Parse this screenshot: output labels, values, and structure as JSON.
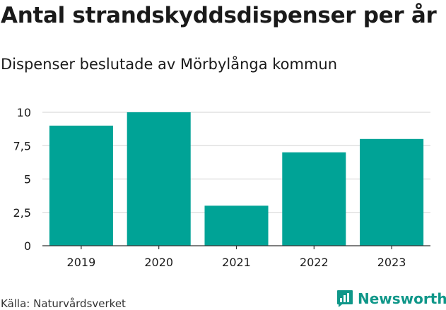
{
  "title": "Antal strandskyddsdispenser per år",
  "subtitle": "Dispenser beslutade av Mörbylånga kommun",
  "source": "Källa: Naturvårdsverket",
  "brand": {
    "name": "Newsworthy",
    "icon": "bar-chart-icon",
    "color": "#0f9789"
  },
  "colors": {
    "bar": "#00a396",
    "grid": "#dcdcdc",
    "axis": "#333333"
  },
  "chart_data": {
    "type": "bar",
    "title": "Antal strandskyddsdispenser per år",
    "xlabel": "",
    "ylabel": "",
    "categories": [
      "2019",
      "2020",
      "2021",
      "2022",
      "2023"
    ],
    "values": [
      9,
      10,
      3,
      7,
      8
    ],
    "ylim": [
      0,
      10
    ],
    "yticks": [
      0,
      2.5,
      5,
      7.5,
      10
    ],
    "ytick_labels": [
      "0",
      "2,5",
      "5",
      "7,5",
      "10"
    ],
    "grid": true,
    "legend": "none"
  }
}
